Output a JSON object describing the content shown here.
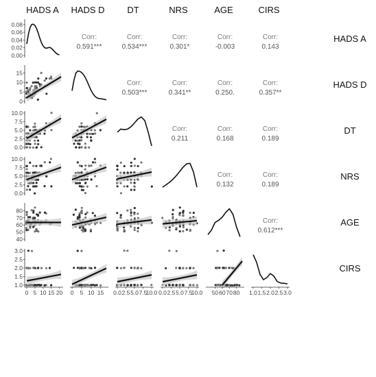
{
  "chart_data": {
    "type": "scatter-matrix",
    "variables": [
      "HADS A",
      "HADS D",
      "DT",
      "NRS",
      "AGE",
      "CIRS"
    ],
    "corr_label": "Corr:",
    "correlations": [
      {
        "row": "HADS A",
        "col": "HADS D",
        "value": "0.591***"
      },
      {
        "row": "HADS A",
        "col": "DT",
        "value": "0.534***"
      },
      {
        "row": "HADS A",
        "col": "NRS",
        "value": "0.301*"
      },
      {
        "row": "HADS A",
        "col": "AGE",
        "value": "-0.003"
      },
      {
        "row": "HADS A",
        "col": "CIRS",
        "value": "0.143"
      },
      {
        "row": "HADS D",
        "col": "DT",
        "value": "0.503***"
      },
      {
        "row": "HADS D",
        "col": "NRS",
        "value": "0.341**"
      },
      {
        "row": "HADS D",
        "col": "AGE",
        "value": "0.250."
      },
      {
        "row": "HADS D",
        "col": "CIRS",
        "value": "0.357**"
      },
      {
        "row": "DT",
        "col": "NRS",
        "value": "0.211"
      },
      {
        "row": "DT",
        "col": "AGE",
        "value": "0.168"
      },
      {
        "row": "DT",
        "col": "CIRS",
        "value": "0.189"
      },
      {
        "row": "NRS",
        "col": "AGE",
        "value": "0.132"
      },
      {
        "row": "NRS",
        "col": "CIRS",
        "value": "0.189"
      },
      {
        "row": "AGE",
        "col": "CIRS",
        "value": "0.612***"
      }
    ],
    "y_ticks": {
      "HADS A": [
        "0.00",
        "0.02",
        "0.04",
        "0.06",
        "0.08"
      ],
      "HADS D": [
        "0",
        "5",
        "10",
        "15"
      ],
      "DT": [
        "0.0",
        "2.5",
        "5.0",
        "7.5",
        "10.0"
      ],
      "NRS": [
        "0.0",
        "2.5",
        "5.0",
        "7.5",
        "10.0"
      ],
      "AGE": [
        "40",
        "50",
        "60",
        "70",
        "80"
      ],
      "CIRS": [
        "1.0",
        "1.5",
        "2.0",
        "2.5",
        "3.0"
      ]
    },
    "x_ticks": {
      "HADS A": [
        "0",
        "5",
        "10",
        "15",
        "20"
      ],
      "HADS D": [
        "0",
        "5",
        "10",
        "15"
      ],
      "DT": [
        "0.0",
        "2.5",
        "5.0",
        "7.5",
        "10.0"
      ],
      "NRS": [
        "0.0",
        "2.5",
        "5.0",
        "7.5",
        "10.0"
      ],
      "AGE": [
        "50",
        "60",
        "70",
        "80"
      ],
      "CIRS": [
        "1.0",
        "1.5",
        "2.0",
        "2.5",
        "3.0"
      ]
    },
    "ranges": {
      "HADS A": [
        0,
        21
      ],
      "HADS D": [
        0,
        18
      ],
      "DT": [
        0,
        10
      ],
      "NRS": [
        0,
        10
      ],
      "AGE": [
        40,
        88
      ],
      "CIRS": [
        1,
        3
      ]
    },
    "density": {
      "HADS A": {
        "ylim": [
          0,
          0.085
        ],
        "x": [
          0,
          1,
          2,
          3,
          4,
          5,
          6,
          7,
          8,
          9,
          10,
          11,
          12,
          13,
          14,
          15,
          16,
          17,
          18,
          19,
          20
        ],
        "y": [
          0.03,
          0.055,
          0.072,
          0.08,
          0.081,
          0.078,
          0.07,
          0.058,
          0.045,
          0.033,
          0.025,
          0.02,
          0.019,
          0.02,
          0.021,
          0.019,
          0.015,
          0.01,
          0.006,
          0.003,
          0.002
        ]
      },
      "HADS D": {
        "x": [
          0,
          1,
          2,
          3,
          4,
          5,
          6,
          7,
          8,
          9,
          10,
          11,
          12,
          13,
          14,
          15,
          16,
          17,
          18
        ],
        "y": [
          0.35,
          0.7,
          0.93,
          1.0,
          0.99,
          0.95,
          0.88,
          0.78,
          0.65,
          0.5,
          0.36,
          0.25,
          0.17,
          0.12,
          0.1,
          0.09,
          0.08,
          0.07,
          0.05
        ]
      },
      "DT": {
        "x": [
          0,
          1,
          2,
          3,
          4,
          5,
          6,
          7,
          8,
          9,
          10
        ],
        "y": [
          0.5,
          0.6,
          0.58,
          0.6,
          0.68,
          0.8,
          0.93,
          1.0,
          0.88,
          0.5,
          0.05
        ]
      },
      "NRS": {
        "x": [
          0,
          1,
          2,
          3,
          4,
          5,
          6,
          7,
          8,
          9,
          10
        ],
        "y": [
          0.2,
          0.28,
          0.36,
          0.46,
          0.58,
          0.72,
          0.86,
          0.97,
          0.98,
          0.7,
          0.2
        ]
      },
      "AGE": {
        "x": [
          40,
          45,
          50,
          55,
          60,
          65,
          70,
          75,
          80,
          85
        ],
        "y": [
          0.15,
          0.3,
          0.55,
          0.62,
          0.72,
          0.88,
          1.0,
          0.82,
          0.4,
          0.08
        ]
      },
      "CIRS": {
        "x": [
          1.0,
          1.2,
          1.4,
          1.6,
          1.8,
          2.0,
          2.2,
          2.4,
          2.6,
          2.8,
          3.0
        ],
        "y": [
          1.0,
          0.75,
          0.35,
          0.18,
          0.25,
          0.38,
          0.3,
          0.12,
          0.07,
          0.06,
          0.04
        ]
      }
    },
    "fits": {
      "HADS D|HADS A": [
        2.0,
        0.52
      ],
      "DT|HADS A": [
        2.6,
        0.28
      ],
      "DT|HADS D": [
        2.8,
        0.3
      ],
      "NRS|HADS A": [
        4.0,
        0.17
      ],
      "NRS|HADS D": [
        4.0,
        0.2
      ],
      "NRS|DT": [
        4.2,
        0.2
      ],
      "AGE|HADS A": [
        63.5,
        0.0
      ],
      "AGE|HADS D": [
        60.0,
        0.6
      ],
      "AGE|DT": [
        61.0,
        0.6
      ],
      "AGE|NRS": [
        61.5,
        0.45
      ],
      "CIRS|HADS A": [
        1.25,
        0.018
      ],
      "CIRS|HADS D": [
        1.05,
        0.052
      ],
      "CIRS|DT": [
        1.2,
        0.04
      ],
      "CIRS|NRS": [
        1.2,
        0.04
      ],
      "CIRS|AGE": [
        -2.0,
        0.05
      ]
    },
    "n_points": 60
  }
}
